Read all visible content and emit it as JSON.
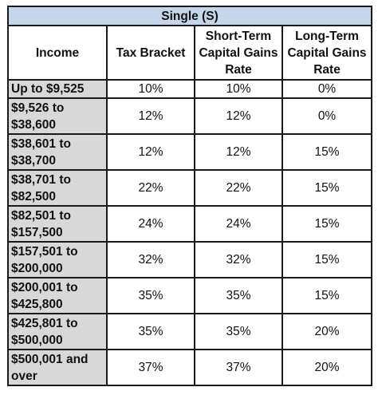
{
  "table": {
    "title": "Single (S)",
    "headers": [
      "Income",
      "Tax Bracket",
      "Short-Term Capital Gains Rate",
      "Long-Term Capital Gains Rate"
    ],
    "header_lines": [
      [
        "Income"
      ],
      [
        "Tax Bracket"
      ],
      [
        "Short-Term",
        "Capital Gains",
        "Rate"
      ],
      [
        "Long-Term",
        "Capital Gains",
        "Rate"
      ]
    ],
    "rows": [
      {
        "income_lines": [
          "Up to $9,525"
        ],
        "tax_bracket": "10%",
        "short_term": "10%",
        "long_term": "0%"
      },
      {
        "income_lines": [
          "$9,526 to",
          "$38,600"
        ],
        "tax_bracket": "12%",
        "short_term": "12%",
        "long_term": "0%"
      },
      {
        "income_lines": [
          "$38,601 to",
          "$38,700"
        ],
        "tax_bracket": "12%",
        "short_term": "12%",
        "long_term": "15%"
      },
      {
        "income_lines": [
          "$38,701 to",
          "$82,500"
        ],
        "tax_bracket": "22%",
        "short_term": "22%",
        "long_term": "15%"
      },
      {
        "income_lines": [
          "$82,501 to",
          "$157,500"
        ],
        "tax_bracket": "24%",
        "short_term": "24%",
        "long_term": "15%"
      },
      {
        "income_lines": [
          "$157,501 to",
          "$200,000"
        ],
        "tax_bracket": "32%",
        "short_term": "32%",
        "long_term": "15%"
      },
      {
        "income_lines": [
          "$200,001 to",
          "$425,800"
        ],
        "tax_bracket": "35%",
        "short_term": "35%",
        "long_term": "15%"
      },
      {
        "income_lines": [
          "$425,801 to",
          "$500,000"
        ],
        "tax_bracket": "35%",
        "short_term": "35%",
        "long_term": "20%"
      },
      {
        "income_lines": [
          "$500,001 and",
          "over"
        ],
        "tax_bracket": "37%",
        "short_term": "37%",
        "long_term": "20%"
      }
    ]
  }
}
